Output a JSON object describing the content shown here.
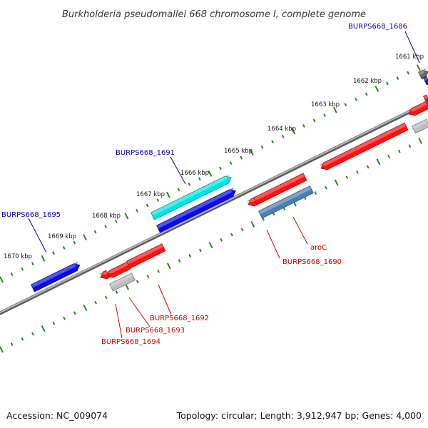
{
  "title": "Burkholderia pseudomallei 668 chromosome I, complete genome",
  "footer": {
    "accession": "Accession: NC_009074",
    "stats": "Topology: circular; Length: 3,912,947 bp; Genes: 4,000"
  },
  "colors": {
    "backbone": "#8a8a8a",
    "scale_dots": "#1e8a1e",
    "label_forward": "#0000aa",
    "label_reverse": "#cc0000",
    "gene_blue": "#0a0aee",
    "gene_cyan": "#00e5e5",
    "gene_red": "#ff1111",
    "gene_steel": "#4a7fb5",
    "gene_gray": "#bdbdbd",
    "gene_darkgray": "#666666"
  },
  "scale_labels": [
    "1661 kbp",
    "1662 kbp",
    "1663 kbp",
    "1664 kbp",
    "1665 kbp",
    "1666 kbp",
    "1667 kbp",
    "1668 kbp",
    "1669 kbp",
    "1670 kbp"
  ],
  "gene_labels": [
    {
      "id": "BURPS668_1686",
      "strand": "forward"
    },
    {
      "id": "BURPS668_1691",
      "strand": "forward"
    },
    {
      "id": "BURPS668_1695",
      "strand": "forward"
    },
    {
      "id": "aroC",
      "strand": "reverse"
    },
    {
      "id": "BURPS668_1690",
      "strand": "reverse"
    },
    {
      "id": "BURPS668_1692",
      "strand": "reverse"
    },
    {
      "id": "BURPS668_1693",
      "strand": "reverse"
    },
    {
      "id": "BURPS668_1694",
      "strand": "reverse"
    }
  ],
  "genes": [
    {
      "track": "forward",
      "color": "gene_darkgray"
    },
    {
      "track": "forward",
      "color": "gene_blue"
    },
    {
      "track": "forward",
      "color": "gene_cyan"
    },
    {
      "track": "forward",
      "color": "gene_blue"
    },
    {
      "track": "forward",
      "color": "gene_blue"
    },
    {
      "track": "reverse",
      "color": "gene_red"
    },
    {
      "track": "reverse",
      "color": "gene_red"
    },
    {
      "track": "reverse",
      "color": "gene_gray"
    },
    {
      "track": "reverse",
      "color": "gene_red"
    },
    {
      "track": "reverse",
      "color": "gene_steel"
    },
    {
      "track": "reverse",
      "color": "gene_red"
    },
    {
      "track": "reverse",
      "color": "gene_red"
    },
    {
      "track": "reverse",
      "color": "gene_red"
    },
    {
      "track": "reverse",
      "color": "gene_red"
    },
    {
      "track": "reverse",
      "color": "gene_gray"
    },
    {
      "track": "reverse",
      "color": "gene_red"
    }
  ]
}
